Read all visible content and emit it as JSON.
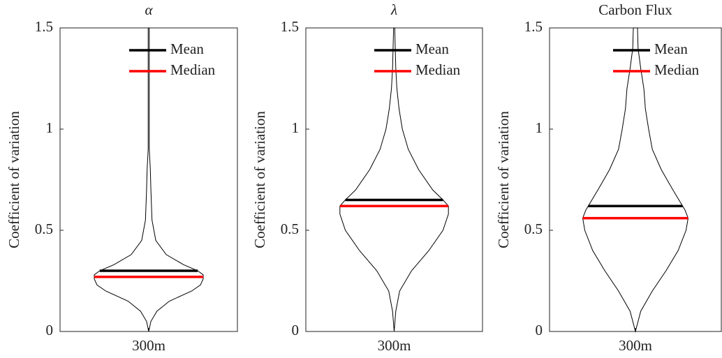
{
  "chart_data": [
    {
      "type": "violin",
      "title": "α",
      "ylabel": "Coefficient of variation",
      "categories": [
        "300m"
      ],
      "ylim": [
        0,
        1.5
      ],
      "yticks": [
        0,
        0.5,
        1,
        1.5
      ],
      "legend": "upper right",
      "density": {
        "y": [
          0,
          0.05,
          0.1,
          0.15,
          0.2,
          0.23,
          0.26,
          0.28,
          0.3,
          0.33,
          0.38,
          0.45,
          0.55,
          0.7,
          0.8,
          0.9,
          1.5
        ],
        "width": [
          0,
          0.04,
          0.15,
          0.38,
          0.79,
          0.95,
          1,
          1,
          0.9,
          0.64,
          0.32,
          0.13,
          0.06,
          0.04,
          0.03,
          0.01,
          0.01
        ]
      },
      "series": [
        {
          "name": "Mean",
          "color": "#000000",
          "values": [
            0.3
          ]
        },
        {
          "name": "Median",
          "color": "#ff0000",
          "values": [
            0.27
          ]
        }
      ]
    },
    {
      "type": "violin",
      "title": "λ",
      "ylabel": "Coefficient of variation",
      "categories": [
        "300m"
      ],
      "ylim": [
        0,
        1.5
      ],
      "yticks": [
        0,
        0.5,
        1,
        1.5
      ],
      "legend": "upper right",
      "density": {
        "y": [
          0,
          0.1,
          0.2,
          0.3,
          0.4,
          0.5,
          0.58,
          0.62,
          0.65,
          0.7,
          0.8,
          0.9,
          1.0,
          1.1,
          1.2,
          1.3,
          1.5
        ],
        "width": [
          0,
          0.03,
          0.1,
          0.32,
          0.64,
          0.9,
          1,
          1,
          0.9,
          0.71,
          0.45,
          0.26,
          0.15,
          0.09,
          0.05,
          0.03,
          0.01
        ]
      },
      "series": [
        {
          "name": "Mean",
          "color": "#000000",
          "values": [
            0.65
          ]
        },
        {
          "name": "Median",
          "color": "#ff0000",
          "values": [
            0.62
          ]
        }
      ]
    },
    {
      "type": "violin",
      "title": "Carbon Flux",
      "ylabel": "Coefficient of variation",
      "categories": [
        "300m"
      ],
      "ylim": [
        0,
        1.5
      ],
      "yticks": [
        0,
        0.5,
        1,
        1.5
      ],
      "legend": "upper right",
      "density": {
        "y": [
          0,
          0.1,
          0.2,
          0.3,
          0.4,
          0.5,
          0.56,
          0.6,
          0.7,
          0.8,
          0.9,
          1.0,
          1.1,
          1.2,
          1.3,
          1.4,
          1.5
        ],
        "width": [
          0,
          0.1,
          0.32,
          0.58,
          0.81,
          0.96,
          1,
          0.94,
          0.71,
          0.49,
          0.32,
          0.25,
          0.19,
          0.16,
          0.1,
          0.05,
          0.04
        ]
      },
      "series": [
        {
          "name": "Mean",
          "color": "#000000",
          "values": [
            0.62
          ]
        },
        {
          "name": "Median",
          "color": "#ff0000",
          "values": [
            0.56
          ]
        }
      ]
    }
  ]
}
